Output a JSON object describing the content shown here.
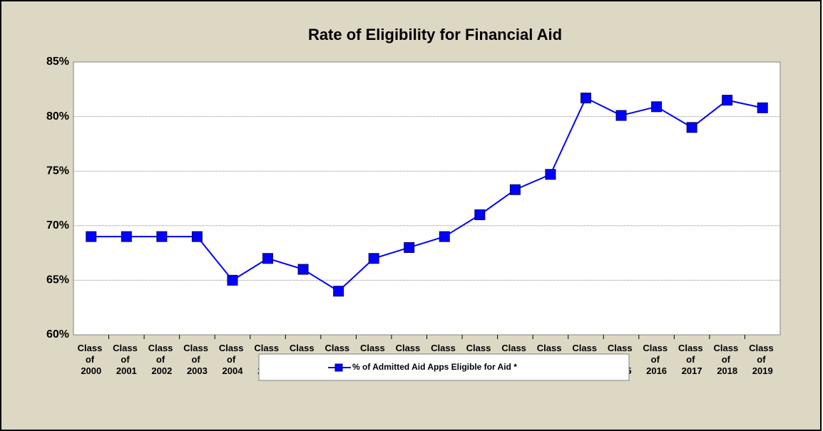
{
  "chart_data": {
    "type": "line",
    "title": "Rate of Eligibility for Financial Aid",
    "categories": [
      "Class of 2000",
      "Class of 2001",
      "Class of 2002",
      "Class of 2003",
      "Class of 2004",
      "Class of 2005",
      "Class of 2006",
      "Class of 2007",
      "Class of 2008",
      "Class of 2009",
      "Class of 2010",
      "Class of 2011",
      "Class of 2012",
      "Class of 2013",
      "Class of 2014",
      "Class of 2015",
      "Class of 2016",
      "Class of 2017",
      "Class of 2018",
      "Class of 2019"
    ],
    "series": [
      {
        "name": "% of Admitted Aid Apps Eligible for Aid *",
        "color": "#0000ff",
        "values": [
          69,
          69,
          69,
          69,
          65,
          67,
          66,
          64,
          67,
          68,
          69,
          71,
          73.3,
          74.7,
          81.7,
          80.1,
          80.9,
          79,
          81.5,
          80.8
        ]
      }
    ],
    "ylim": [
      60,
      85
    ],
    "yticks": [
      {
        "value": 60,
        "label": "60%"
      },
      {
        "value": 65,
        "label": "65%"
      },
      {
        "value": 70,
        "label": "70%"
      },
      {
        "value": 75,
        "label": "75%"
      },
      {
        "value": 80,
        "label": "80%"
      },
      {
        "value": 85,
        "label": "85%"
      }
    ],
    "grid": true,
    "legend": "bottom"
  }
}
